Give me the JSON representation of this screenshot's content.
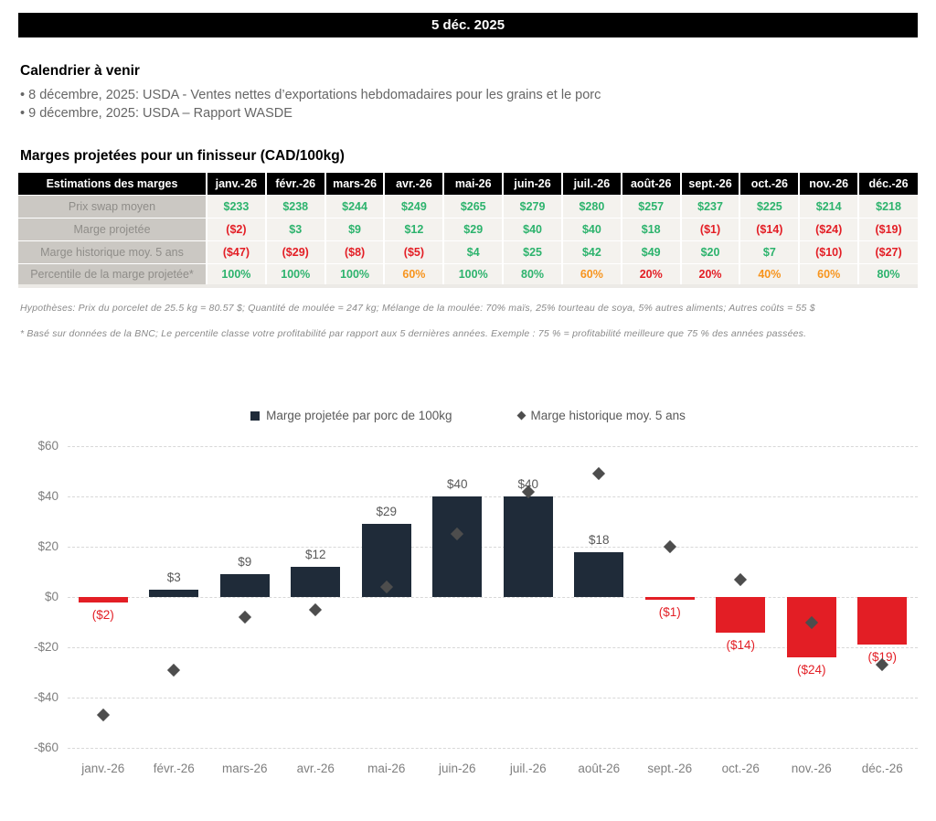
{
  "header": {
    "date": "5 déc. 2025"
  },
  "calendar": {
    "title": "Calendrier à venir",
    "items": [
      "• 8 décembre, 2025: USDA - Ventes nettes d’exportations hebdomadaires pour les grains et le porc",
      "• 9 décembre, 2025: USDA – Rapport WASDE"
    ]
  },
  "margins": {
    "title": "Marges projetées pour un finisseur (CAD/100kg)",
    "table": {
      "corner_label": "Estimations des marges",
      "months": [
        "janv.-26",
        "févr.-26",
        "mars-26",
        "avr.-26",
        "mai-26",
        "juin-26",
        "juil.-26",
        "août-26",
        "sept.-26",
        "oct.-26",
        "nov.-26",
        "déc.-26"
      ],
      "rows": [
        {
          "label": "Prix swap moyen",
          "values": [
            "$233",
            "$238",
            "$244",
            "$249",
            "$265",
            "$279",
            "$280",
            "$257",
            "$237",
            "$225",
            "$214",
            "$218"
          ],
          "colors": [
            "green",
            "green",
            "green",
            "green",
            "green",
            "green",
            "green",
            "green",
            "green",
            "green",
            "green",
            "green"
          ],
          "bold": false
        },
        {
          "label": "Marge projetée",
          "values": [
            "($2)",
            "$3",
            "$9",
            "$12",
            "$29",
            "$40",
            "$40",
            "$18",
            "($1)",
            "($14)",
            "($24)",
            "($19)"
          ],
          "colors": [
            "red",
            "green",
            "green",
            "green",
            "green",
            "green",
            "green",
            "green",
            "red",
            "red",
            "red",
            "red"
          ],
          "bold": false
        },
        {
          "label": "Marge historique moy. 5 ans",
          "values": [
            "($47)",
            "($29)",
            "($8)",
            "($5)",
            "$4",
            "$25",
            "$42",
            "$49",
            "$20",
            "$7",
            "($10)",
            "($27)"
          ],
          "colors": [
            "red",
            "red",
            "red",
            "red",
            "green",
            "green",
            "green",
            "green",
            "green",
            "green",
            "red",
            "red"
          ],
          "bold": false
        },
        {
          "label": "Percentile de la marge projetée*",
          "values": [
            "100%",
            "100%",
            "100%",
            "60%",
            "100%",
            "80%",
            "60%",
            "20%",
            "20%",
            "40%",
            "60%",
            "80%"
          ],
          "colors": [
            "green",
            "green",
            "green",
            "orange",
            "green",
            "green",
            "orange",
            "red",
            "red",
            "orange",
            "orange",
            "green"
          ],
          "bold": true
        }
      ]
    },
    "footnotes": [
      "Hypothèses: Prix du porcelet de 25.5 kg = 80.57 $; Quantité de moulée = 247 kg; Mélange de la moulée: 70% maïs, 25% tourteau de soya, 5% autres aliments; Autres coûts = 55 $",
      "* Basé sur données de la BNC; Le percentile classe votre profitabilité par rapport aux 5 dernières années. Exemple : 75 % = profitabilité meilleure que 75 % des années passées."
    ]
  },
  "chart_data": {
    "type": "bar",
    "categories": [
      "janv.-26",
      "févr.-26",
      "mars-26",
      "avr.-26",
      "mai-26",
      "juin-26",
      "juil.-26",
      "août-26",
      "sept.-26",
      "oct.-26",
      "nov.-26",
      "déc.-26"
    ],
    "series": [
      {
        "name": "Marge projetée par porc de 100kg",
        "type": "bar",
        "values": [
          -2,
          3,
          9,
          12,
          29,
          40,
          40,
          18,
          -1,
          -14,
          -24,
          -19
        ],
        "labels": [
          "($2)",
          "$3",
          "$9",
          "$12",
          "$29",
          "$40",
          "$40",
          "$18",
          "($1)",
          "($14)",
          "($24)",
          "($19)"
        ]
      },
      {
        "name": "Marge historique moy. 5 ans",
        "type": "scatter",
        "marker": "diamond",
        "values": [
          -47,
          -29,
          -8,
          -5,
          4,
          25,
          42,
          49,
          20,
          7,
          -10,
          -27
        ]
      }
    ],
    "ylim": [
      -60,
      60
    ],
    "yticks": [
      {
        "label": "$60",
        "value": 60
      },
      {
        "label": "$40",
        "value": 40
      },
      {
        "label": "$20",
        "value": 20
      },
      {
        "label": "$0",
        "value": 0
      },
      {
        "label": "-$20",
        "value": -20
      },
      {
        "label": "-$40",
        "value": -40
      },
      {
        "label": "-$60",
        "value": -60
      }
    ],
    "grid": "horizontal-dashed",
    "legend_position": "top-center",
    "colors": {
      "bar_positive": "#1f2b39",
      "bar_negative": "#e31e25",
      "diamond": "#4d4d4d",
      "label_positive": "#595959",
      "label_negative": "#e31e25"
    }
  }
}
